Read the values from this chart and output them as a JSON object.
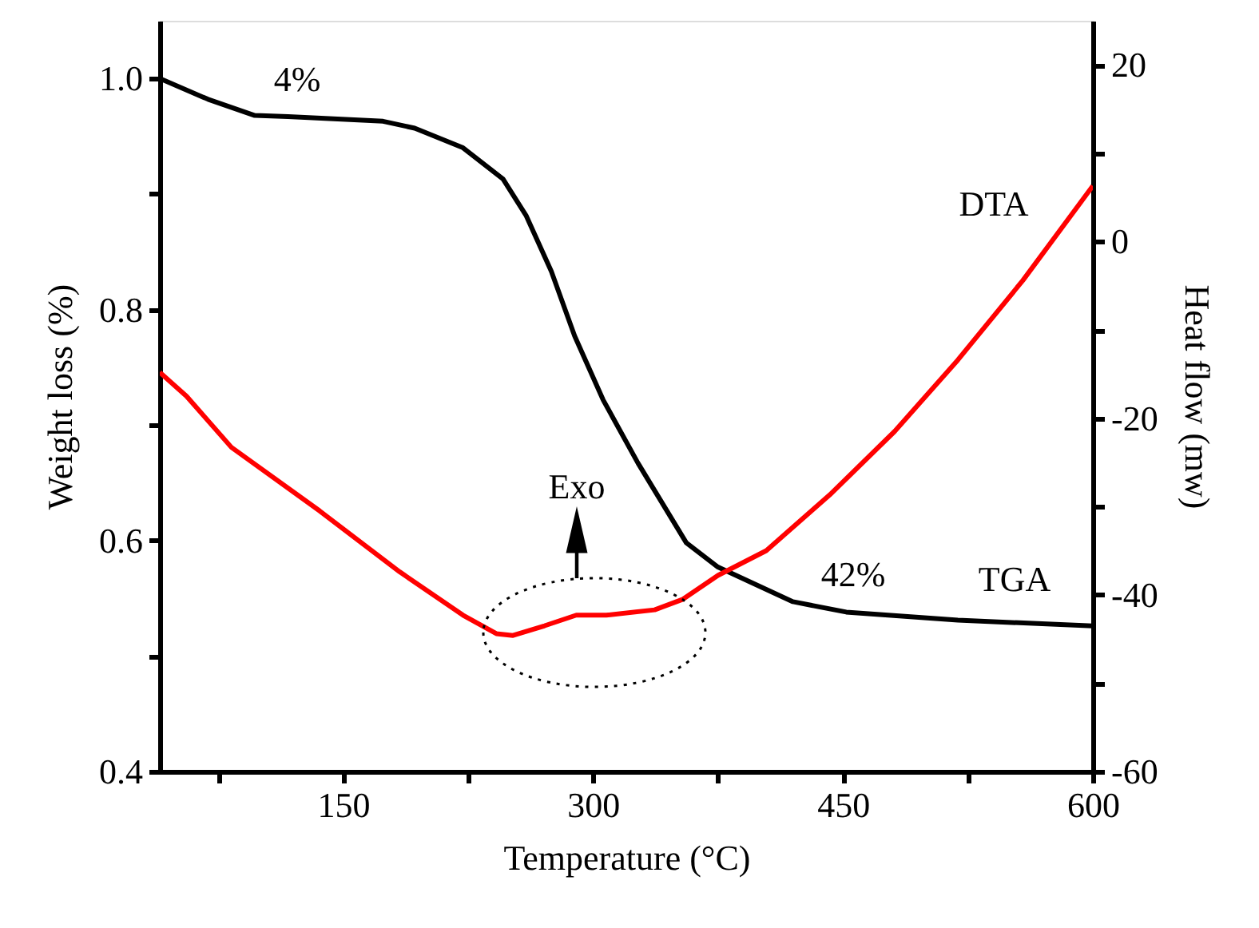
{
  "chart_data": {
    "type": "line",
    "xlabel": "Temperature (°C)",
    "ylabel": "Weight loss (%)",
    "y2label": "Heat flow (mw)",
    "xlim": [
      40,
      600
    ],
    "xticks": [
      {
        "value": 75,
        "label": null
      },
      150,
      {
        "value": 225,
        "label": null
      },
      300,
      {
        "value": 375,
        "label": null
      },
      450,
      {
        "value": 525,
        "label": null
      },
      600
    ],
    "ylim": [
      0.4,
      1.05
    ],
    "yticks": [
      0.4,
      {
        "value": 0.5,
        "label": null
      },
      0.6,
      {
        "value": 0.7,
        "label": null
      },
      0.8,
      {
        "value": 0.9,
        "label": null
      },
      {
        "value": 1.0,
        "label": "1.0"
      }
    ],
    "y2lim": [
      -60,
      25
    ],
    "y2ticks": [
      -60,
      {
        "value": -50,
        "label": null
      },
      -40,
      {
        "value": -30,
        "label": null
      },
      -20,
      {
        "value": -10,
        "label": null
      },
      0,
      {
        "value": 10,
        "label": null
      },
      20
    ],
    "grid": false,
    "series": [
      {
        "name": "TGA",
        "color": "#000000",
        "x": [
          40,
          69,
          97,
          117,
          174,
          193,
          222,
          246,
          260,
          275,
          289,
          306,
          327,
          356,
          375,
          420,
          452,
          519,
          600
        ],
        "values": [
          1.0,
          0.982,
          0.968,
          0.967,
          0.963,
          0.957,
          0.94,
          0.913,
          0.881,
          0.833,
          0.777,
          0.722,
          0.667,
          0.598,
          0.577,
          0.547,
          0.538,
          0.531,
          0.526
        ]
      },
      {
        "name": "DTA",
        "color": "#ff0000",
        "axis": "y2",
        "x": [
          40,
          56,
          83,
          136,
          184,
          222,
          242,
          252,
          271,
          290,
          308,
          337,
          354,
          375,
          404,
          442,
          481,
          519,
          558,
          600
        ],
        "values": [
          -14.8,
          -17.5,
          -23.3,
          -30.5,
          -37.4,
          -42.3,
          -44.4,
          -44.6,
          -43.5,
          -42.3,
          -42.3,
          -41.7,
          -40.5,
          -37.8,
          -35,
          -28.7,
          -21.5,
          -13.4,
          -4.4,
          6.3
        ]
      }
    ],
    "annotations": [
      "4%",
      "42%",
      "Exo"
    ]
  }
}
